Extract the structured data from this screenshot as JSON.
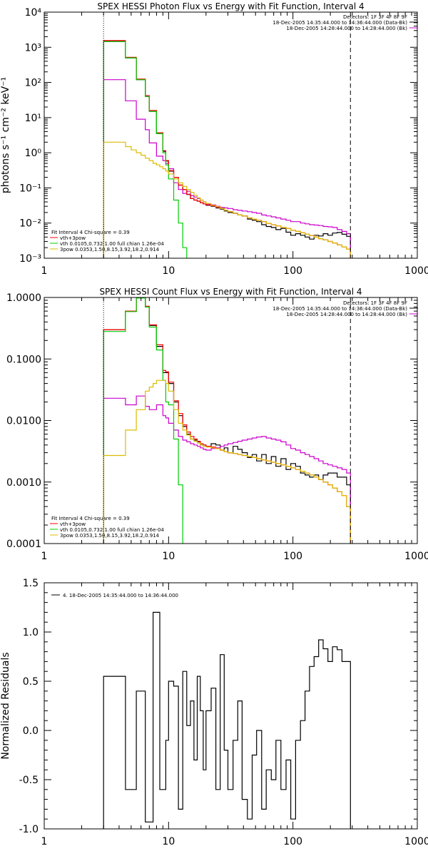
{
  "chart_data": [
    {
      "type": "line",
      "title": "SPEX HESSI Photon Flux vs Energy with Fit Function, Interval 4",
      "ylabel": "photons s⁻¹ cm⁻² keV⁻¹",
      "xscale": "log",
      "yscale": "log",
      "xlim": [
        1,
        1000
      ],
      "ylim": [
        0.001,
        10000
      ],
      "xticks": [
        "1",
        "10",
        "100",
        "1000"
      ],
      "yticks": [
        "10⁻³",
        "10⁻²",
        "10⁻¹",
        "10⁰",
        "10¹",
        "10²",
        "10³",
        "10⁴"
      ],
      "detector_legend": [
        "Detectors: 1F 3F 4F 8F 9F",
        "18-Dec-2005 14:35:44.000 to 14:36:44.000 (Data-Bk)",
        "18-Dec-2005 14:28:44.000 to 14:28:44.000 (Bk)"
      ],
      "fit_legend": [
        "Fit Interval 4   Chi-square = 0.39",
        "vth+3pow",
        "vth 0.0105,0.732,1.00  full chian 1.26e-04",
        "3pow 0.0353,1.50,8.15,3.92,18.2,0.914"
      ],
      "vlines": [
        3,
        290
      ],
      "energy_edges": [
        3,
        3.5,
        4,
        4.5,
        5,
        5.5,
        6,
        6.5,
        7,
        7.5,
        8,
        8.5,
        9,
        9.5,
        10,
        11,
        12,
        13,
        14,
        15,
        16,
        17,
        18,
        19,
        20,
        22,
        24,
        26,
        28,
        30,
        33,
        36,
        39,
        43,
        47,
        51,
        56,
        61,
        67,
        73,
        80,
        88,
        96,
        105,
        115,
        125,
        136,
        148,
        161,
        175,
        191,
        208,
        227,
        248,
        270,
        290
      ],
      "series": [
        {
          "name": "18-Dec-2005 14:35:44.000 to 14:36:44.000 (Data-Bk)",
          "color": "#000000",
          "values": [
            1500,
            1500,
            1500,
            500,
            500,
            120,
            120,
            40,
            15,
            15,
            3.5,
            3.5,
            1.1,
            0.58,
            0.3,
            0.2,
            0.12,
            0.09,
            0.065,
            0.05,
            0.045,
            0.042,
            0.038,
            0.035,
            0.032,
            0.03,
            0.027,
            0.025,
            0.022,
            0.02,
            0.019,
            0.017,
            0.016,
            0.013,
            0.012,
            0.011,
            0.009,
            0.008,
            0.0075,
            0.0065,
            0.007,
            0.0055,
            0.0045,
            0.005,
            0.0045,
            0.004,
            0.0035,
            0.0045,
            0.0043,
            0.005,
            0.0045,
            0.0052,
            0.0054,
            0.0048,
            0.0042
          ]
        },
        {
          "name": "18-Dec-2005 14:28:44.000 to 14:28:44.000 (Bk)",
          "color": "#cc00cc",
          "values": [
            120,
            120,
            120,
            30,
            30,
            9,
            9,
            4.5,
            1.9,
            1.9,
            0.8,
            0.8,
            0.6,
            0.5,
            0.35,
            0.14,
            0.09,
            0.07,
            0.08,
            0.06,
            0.055,
            0.05,
            0.045,
            0.04,
            0.035,
            0.033,
            0.03,
            0.028,
            0.027,
            0.026,
            0.024,
            0.023,
            0.022,
            0.021,
            0.02,
            0.019,
            0.017,
            0.016,
            0.015,
            0.014,
            0.013,
            0.012,
            0.011,
            0.011,
            0.01,
            0.0095,
            0.009,
            0.0088,
            0.0085,
            0.008,
            0.0078,
            0.0075,
            0.0065,
            0.0058,
            0.005
          ]
        },
        {
          "name": "vth+3pow",
          "color": "#ff0000",
          "values": [
            1550,
            1550,
            1550,
            520,
            520,
            125,
            125,
            42,
            16,
            16,
            3.7,
            3.7,
            1.15,
            0.6,
            0.31,
            0.2,
            0.12,
            0.09,
            0.066,
            0.05,
            0.045,
            0.042,
            0.038,
            0.035,
            0.033,
            0.031,
            0.028,
            0.026,
            0.023,
            0.021,
            0.019,
            0.017,
            0.016,
            0.014,
            0.013,
            0.012,
            0.011,
            0.0098,
            0.009,
            0.0083,
            0.0076,
            0.007,
            0.0063,
            0.0058,
            0.0053,
            0.0048,
            0.0044,
            0.004,
            0.0036,
            0.0033,
            0.003,
            0.0027,
            0.0024,
            0.0021,
            0.0018
          ]
        },
        {
          "name": "vth 0.0105,0.732,1.00",
          "color": "#00cc00",
          "values": [
            1450,
            1450,
            1450,
            500,
            500,
            120,
            120,
            40,
            15,
            15,
            3.5,
            3.5,
            1.0,
            0.45,
            0.18,
            0.045,
            0.01,
            0.002,
            0.0009,
            0.0009,
            0.0009,
            0.0009,
            0.0009,
            0.0009,
            0.0009,
            0.0009,
            0.0009,
            0.0009,
            0.0009,
            0.0009,
            0.0009,
            0.0009,
            0.0009,
            0.0009,
            0.0009,
            0.0009,
            0.0009,
            0.0009,
            0.0009,
            0.0009,
            0.0009,
            0.0009,
            0.0009,
            0.0009,
            0.0009,
            0.0009,
            0.0009,
            0.0009,
            0.0009,
            0.0009,
            0.0009,
            0.0009,
            0.0009,
            0.0009,
            0.0009
          ]
        },
        {
          "name": "3pow 0.0353,1.50,8.15,3.92,18.2,0.914",
          "color": "#ddbb00",
          "values": [
            2,
            2,
            2,
            1.5,
            1.2,
            1.0,
            0.85,
            0.7,
            0.6,
            0.5,
            0.45,
            0.4,
            0.35,
            0.3,
            0.25,
            0.18,
            0.14,
            0.11,
            0.09,
            0.075,
            0.062,
            0.052,
            0.045,
            0.04,
            0.036,
            0.032,
            0.029,
            0.026,
            0.023,
            0.021,
            0.019,
            0.017,
            0.016,
            0.014,
            0.013,
            0.012,
            0.011,
            0.0098,
            0.009,
            0.0083,
            0.0076,
            0.007,
            0.0063,
            0.0058,
            0.0053,
            0.0048,
            0.0044,
            0.004,
            0.0036,
            0.0033,
            0.003,
            0.0027,
            0.0024,
            0.0021,
            0.0018
          ]
        }
      ]
    },
    {
      "type": "line",
      "title": "SPEX HESSI Count Flux vs Energy with Fit Function, Interval 4",
      "ylabel": "",
      "xscale": "log",
      "yscale": "log",
      "xlim": [
        1,
        1000
      ],
      "ylim": [
        0.0001,
        1.0
      ],
      "xticks": [
        "1",
        "10",
        "100",
        "1000"
      ],
      "yticks": [
        "0.0001",
        "0.0010",
        "0.0100",
        "0.1000",
        "1.0000"
      ],
      "detector_legend": [
        "Detectors: 1F 3F 4F 8F 9F",
        "18-Dec-2005 14:35:44.000 to 14:36:44.000 (Data-Bk)",
        "18-Dec-2005 14:28:44.000 to 14:28:44.000 (Bk)"
      ],
      "fit_legend": [
        "Fit Interval 4   Chi-square = 0.39",
        "vth+3pow",
        "vth 0.0105,0.732,1.00  full chian 1.26e-04",
        "3pow 0.0353,1.50,8.15,3.92,18.2,0.914"
      ],
      "vlines": [
        3,
        290
      ],
      "energy_edges": [
        3,
        3.5,
        4,
        4.5,
        5,
        5.5,
        6,
        6.5,
        7,
        7.5,
        8,
        8.5,
        9,
        9.5,
        10,
        11,
        12,
        13,
        14,
        15,
        16,
        17,
        18,
        19,
        20,
        22,
        24,
        26,
        28,
        30,
        33,
        36,
        39,
        43,
        47,
        51,
        56,
        61,
        67,
        73,
        80,
        88,
        96,
        105,
        115,
        125,
        136,
        148,
        161,
        175,
        191,
        208,
        227,
        248,
        270,
        290
      ],
      "series": [
        {
          "name": "18-Dec-2005 14:35:44.000 to 14:36:44.000 (Data-Bk)",
          "color": "#000000",
          "values": [
            0.3,
            0.3,
            0.3,
            0.6,
            0.6,
            1.0,
            1.0,
            0.7,
            0.35,
            0.35,
            0.16,
            0.16,
            0.06,
            0.06,
            0.04,
            0.02,
            0.012,
            0.008,
            0.006,
            0.005,
            0.0048,
            0.0045,
            0.004,
            0.004,
            0.0038,
            0.0042,
            0.004,
            0.0033,
            0.0036,
            0.003,
            0.0038,
            0.0034,
            0.003,
            0.0025,
            0.0028,
            0.0022,
            0.0028,
            0.002,
            0.0026,
            0.0018,
            0.0024,
            0.0016,
            0.002,
            0.0018,
            0.0014,
            0.0013,
            0.0012,
            0.0013,
            0.0011,
            0.0013,
            0.0014,
            0.0014,
            0.0012,
            0.0012,
            0.0009
          ]
        },
        {
          "name": "18-Dec-2005 14:28:44.000 to 14:28:44.000 (Bk)",
          "color": "#cc00cc",
          "values": [
            0.023,
            0.023,
            0.023,
            0.018,
            0.018,
            0.025,
            0.025,
            0.017,
            0.015,
            0.015,
            0.018,
            0.018,
            0.012,
            0.011,
            0.009,
            0.007,
            0.0055,
            0.0048,
            0.0045,
            0.0042,
            0.004,
            0.0038,
            0.0036,
            0.0034,
            0.0033,
            0.0035,
            0.0036,
            0.0038,
            0.004,
            0.0042,
            0.0044,
            0.0046,
            0.0048,
            0.005,
            0.0052,
            0.0054,
            0.0055,
            0.0052,
            0.005,
            0.0048,
            0.0045,
            0.004,
            0.0035,
            0.0033,
            0.003,
            0.0028,
            0.0026,
            0.0024,
            0.0022,
            0.002,
            0.0019,
            0.0018,
            0.0017,
            0.0016,
            0.0014
          ]
        },
        {
          "name": "vth+3pow",
          "color": "#ff0000",
          "values": [
            0.3,
            0.3,
            0.3,
            0.6,
            0.6,
            1.0,
            1.0,
            0.72,
            0.36,
            0.36,
            0.17,
            0.17,
            0.065,
            0.062,
            0.042,
            0.021,
            0.013,
            0.0085,
            0.0065,
            0.0055,
            0.005,
            0.0046,
            0.0042,
            0.004,
            0.0038,
            0.0037,
            0.0035,
            0.0033,
            0.0031,
            0.003,
            0.0029,
            0.0028,
            0.0027,
            0.0026,
            0.0025,
            0.0024,
            0.0023,
            0.0022,
            0.0021,
            0.002,
            0.0019,
            0.0018,
            0.0017,
            0.0016,
            0.0015,
            0.0014,
            0.0013,
            0.0012,
            0.0011,
            0.001,
            0.0009,
            0.0008,
            0.0007,
            0.0006,
            0.0004
          ]
        },
        {
          "name": "vth 0.0105,0.732,1.00",
          "color": "#00cc00",
          "values": [
            0.28,
            0.28,
            0.28,
            0.59,
            0.59,
            0.98,
            0.98,
            0.7,
            0.33,
            0.33,
            0.14,
            0.14,
            0.045,
            0.02,
            0.018,
            0.005,
            0.0009,
            9e-05,
            9e-05,
            9e-05,
            9e-05,
            9e-05,
            9e-05,
            9e-05,
            9e-05,
            9e-05,
            9e-05,
            9e-05,
            9e-05,
            9e-05,
            9e-05,
            9e-05,
            9e-05,
            9e-05,
            9e-05,
            9e-05,
            9e-05,
            9e-05,
            9e-05,
            9e-05,
            9e-05,
            9e-05,
            9e-05,
            9e-05,
            9e-05,
            9e-05,
            9e-05,
            9e-05,
            9e-05,
            9e-05,
            9e-05,
            9e-05,
            9e-05,
            9e-05,
            9e-05
          ]
        },
        {
          "name": "3pow 0.0353,1.50,8.15,3.92,18.2,0.914",
          "color": "#ddbb00",
          "values": [
            0.0027,
            0.0027,
            0.0027,
            0.007,
            0.007,
            0.015,
            0.015,
            0.03,
            0.035,
            0.04,
            0.045,
            0.045,
            0.045,
            0.04,
            0.03,
            0.015,
            0.009,
            0.007,
            0.0058,
            0.005,
            0.0046,
            0.0043,
            0.004,
            0.0038,
            0.0037,
            0.0036,
            0.0035,
            0.0033,
            0.0031,
            0.003,
            0.0029,
            0.0028,
            0.0027,
            0.0026,
            0.0025,
            0.0024,
            0.0023,
            0.0022,
            0.0021,
            0.002,
            0.0019,
            0.0018,
            0.0017,
            0.0016,
            0.0015,
            0.0014,
            0.0013,
            0.0012,
            0.0011,
            0.001,
            0.0009,
            0.0008,
            0.0007,
            0.0006,
            0.0004
          ]
        }
      ]
    },
    {
      "type": "line",
      "title": "",
      "ylabel": "Normalized Residuals",
      "xscale": "log",
      "yscale": "linear",
      "xlim": [
        1,
        1000
      ],
      "ylim": [
        -1.0,
        1.5
      ],
      "xticks": [
        "1",
        "10",
        "100",
        "1000"
      ],
      "yticks": [
        "-1.0",
        "-0.5",
        "0.0",
        "0.5",
        "1.0",
        "1.5"
      ],
      "legend": [
        "4. 18-Dec-2005 14:35:44.000 to 14:36:44.000"
      ],
      "energy_edges": [
        3,
        3.5,
        4,
        4.5,
        5,
        5.5,
        6,
        6.5,
        7,
        7.5,
        8,
        8.5,
        9,
        9.5,
        10,
        11,
        12,
        13,
        14,
        15,
        16,
        17,
        18,
        19,
        20,
        22,
        24,
        26,
        28,
        30,
        33,
        36,
        39,
        43,
        47,
        51,
        56,
        61,
        67,
        73,
        80,
        88,
        96,
        105,
        115,
        125,
        136,
        148,
        161,
        175,
        191,
        208,
        227,
        248,
        270,
        290
      ],
      "series": [
        {
          "name": "4. 18-Dec-2005 14:35:44.000 to 14:36:44.000",
          "color": "#000000",
          "values": [
            0.55,
            0.55,
            0.55,
            -0.6,
            -0.6,
            0.4,
            0.4,
            -0.93,
            -0.93,
            1.2,
            1.2,
            -0.6,
            -0.6,
            -0.1,
            0.5,
            0.45,
            -0.8,
            0.6,
            0.05,
            0.3,
            -0.3,
            0.55,
            0.2,
            -0.4,
            0.2,
            0.43,
            -0.6,
            0.77,
            -0.2,
            -0.6,
            -0.1,
            0.3,
            -0.7,
            -0.9,
            -0.25,
            0.0,
            -0.8,
            -0.4,
            -0.5,
            -0.1,
            -0.6,
            -0.3,
            -0.9,
            -0.1,
            0.1,
            0.4,
            0.65,
            0.75,
            0.92,
            0.83,
            0.7,
            0.85,
            0.82,
            0.7,
            0.7
          ]
        }
      ]
    }
  ]
}
